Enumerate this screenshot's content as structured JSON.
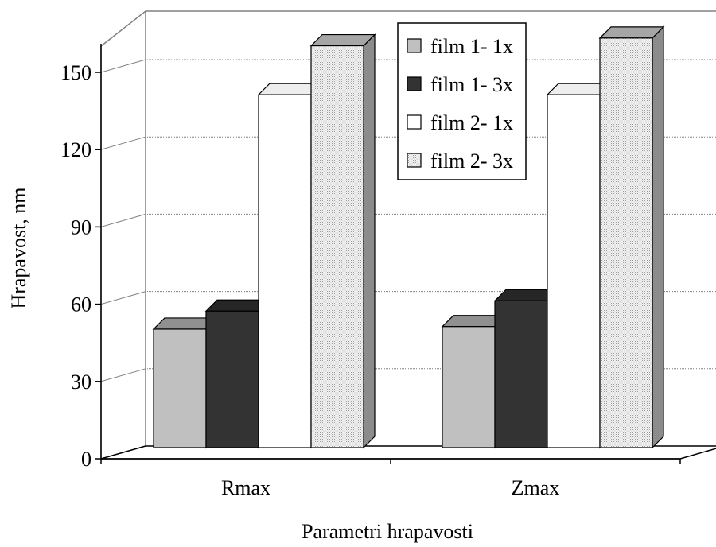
{
  "chart_data": {
    "type": "bar",
    "categories": [
      "Rmax",
      "Zmax"
    ],
    "series": [
      {
        "name": "film 1-  1x",
        "values": [
          46,
          47
        ],
        "color": "#c0c0c0"
      },
      {
        "name": "film 1-  3x",
        "values": [
          53,
          57
        ],
        "color": "#333333"
      },
      {
        "name": "film 2-  1x",
        "values": [
          137,
          137
        ],
        "color": "#ffffff"
      },
      {
        "name": "film 2-  3x",
        "values": [
          156,
          159
        ],
        "color": "#e6e6e6"
      }
    ],
    "y_ticks": [
      "0",
      "30",
      "60",
      "90",
      "120",
      "150"
    ],
    "ylim": [
      0,
      165
    ],
    "ylabel": "Hrapavost, nm",
    "xlabel": "Parametri hrapavosti",
    "grid": true,
    "legend_position": "top-right",
    "style": "3d-clustered-column"
  }
}
